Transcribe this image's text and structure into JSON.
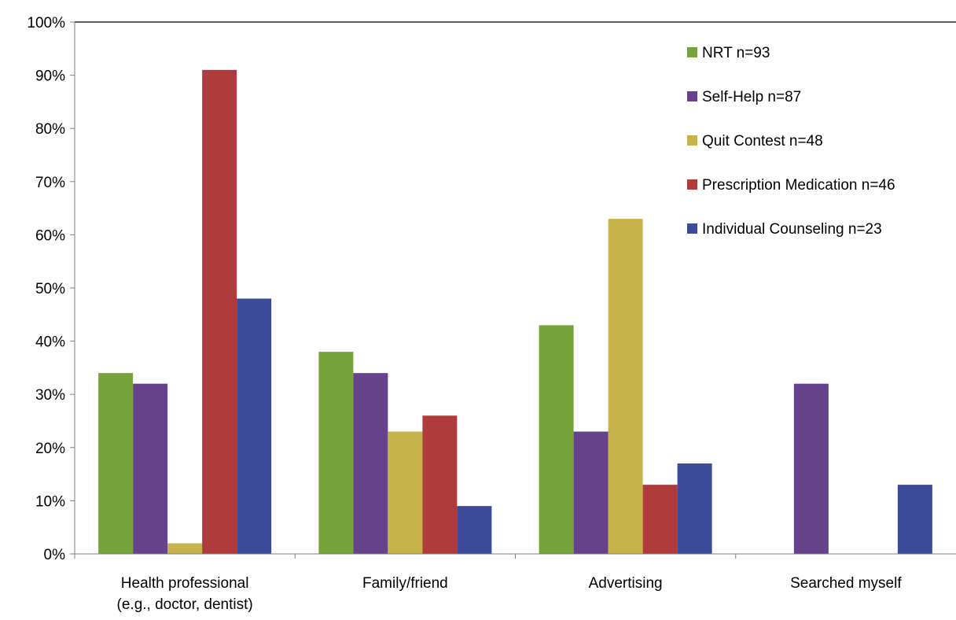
{
  "chart_data": {
    "type": "bar",
    "title": "",
    "xlabel": "",
    "ylabel": "",
    "ylim": [
      0,
      100
    ],
    "y_ticks": [
      "0%",
      "10%",
      "20%",
      "30%",
      "40%",
      "50%",
      "60%",
      "70%",
      "80%",
      "90%",
      "100%"
    ],
    "grid": false,
    "legend_position": "top-right",
    "categories": [
      [
        "Health professional",
        "(e.g., doctor, dentist)"
      ],
      [
        "Family/friend"
      ],
      [
        "Advertising"
      ],
      [
        "Searched myself"
      ]
    ],
    "series": [
      {
        "name": "NRT n=93",
        "color": "#77a23c",
        "values": [
          34,
          38,
          43,
          null
        ]
      },
      {
        "name": "Self-Help n=87",
        "color": "#65428a",
        "values": [
          32,
          34,
          23,
          32
        ]
      },
      {
        "name": "Quit Contest n=48",
        "color": "#c7b34c",
        "values": [
          2,
          23,
          63,
          null
        ]
      },
      {
        "name": "Prescription Medication n=46",
        "color": "#b03b3d",
        "values": [
          91,
          26,
          13,
          null
        ]
      },
      {
        "name": "Individual Counseling n=23",
        "color": "#3b4a99",
        "values": [
          48,
          9,
          17,
          13
        ]
      }
    ]
  }
}
